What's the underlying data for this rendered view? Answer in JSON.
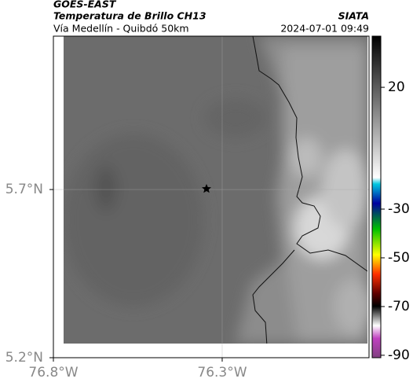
{
  "header": {
    "source": "GOES-EAST",
    "product": "Temperatura de Brillo CH13",
    "agency": "SIATA",
    "route": "Vía Medellín - Quibdó 50km",
    "timestamp": "2024-07-01 09:49"
  },
  "map": {
    "xlim": [
      -76.8,
      -75.865
    ],
    "ylim": [
      5.2,
      6.156
    ],
    "xticks": [
      {
        "value": -76.8,
        "label": "76.8°W"
      },
      {
        "value": -76.3,
        "label": "76.3°W"
      }
    ],
    "yticks": [
      {
        "value": 5.7,
        "label": "5.7°N"
      },
      {
        "value": 5.2,
        "label": "5.2°N"
      }
    ],
    "grid": true
  },
  "colorbar": {
    "lim": [
      41,
      -91
    ],
    "ticks": [
      20,
      -30,
      -50,
      -70,
      -90
    ]
  }
}
